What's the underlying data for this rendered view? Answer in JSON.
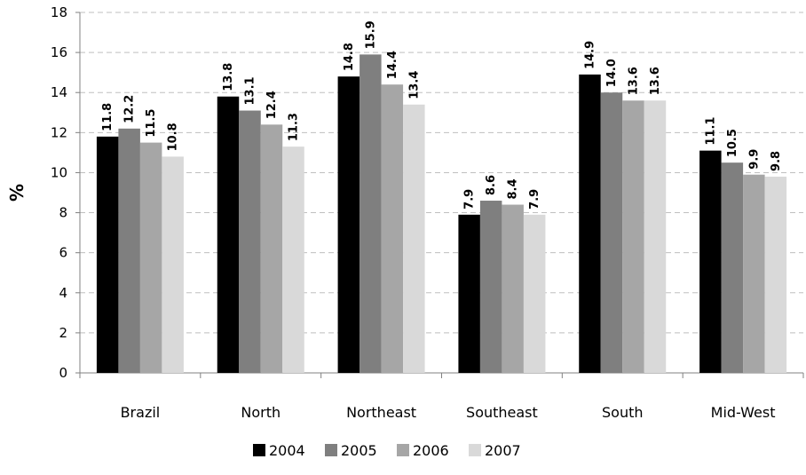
{
  "chart_data": {
    "type": "bar",
    "title": "",
    "xlabel": "",
    "ylabel": "%",
    "ylim": [
      0,
      18
    ],
    "yticks": [
      0,
      2,
      4,
      6,
      8,
      10,
      12,
      14,
      16,
      18
    ],
    "grid": true,
    "legend_position": "bottom",
    "categories": [
      "Brazil",
      "North",
      "Northeast",
      "Southeast",
      "South",
      "Mid-West"
    ],
    "series": [
      {
        "name": "2004",
        "color": "#000000",
        "values": [
          11.8,
          13.8,
          14.8,
          7.9,
          14.9,
          11.1
        ]
      },
      {
        "name": "2005",
        "color": "#7f7f7f",
        "values": [
          12.2,
          13.1,
          15.9,
          8.6,
          14.0,
          10.5
        ]
      },
      {
        "name": "2006",
        "color": "#a6a6a6",
        "values": [
          11.5,
          12.4,
          14.4,
          8.4,
          13.6,
          9.9
        ]
      },
      {
        "name": "2007",
        "color": "#d9d9d9",
        "values": [
          10.8,
          11.3,
          13.4,
          7.9,
          13.6,
          9.8
        ]
      }
    ],
    "data_labels": [
      [
        "11.8",
        "13.8",
        "14.8",
        "7.9",
        "14.9",
        "11.1"
      ],
      [
        "12.2",
        "13.1",
        "15.9",
        "8.6",
        "14.0",
        "10.5"
      ],
      [
        "11.5",
        "12.4",
        "14.4",
        "8.4",
        "13.6",
        "9.9"
      ],
      [
        "10.8",
        "11.3",
        "13.4",
        "7.9",
        "13.6",
        "9.8"
      ]
    ]
  }
}
